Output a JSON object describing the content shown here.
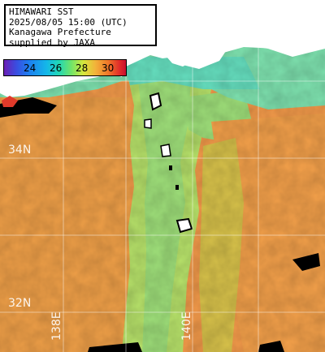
{
  "title_lines": [
    "HIMAWARI SST",
    "2025/08/05 15:00 (UTC)",
    "Kanagawa Prefecture",
    "supplied by JAXA"
  ],
  "color_scale": {
    "ticks": [
      "24",
      "26",
      "28",
      "30"
    ],
    "colors": [
      "#6a1fb5",
      "#3a4de0",
      "#14b8e8",
      "#6fe46a",
      "#f2b23a",
      "#e02a2a"
    ]
  },
  "grid_labels": {
    "lat": [
      "34N",
      "32N"
    ],
    "lon": [
      "138E",
      "140E"
    ]
  },
  "colors": {
    "warm_sea": "#f39a4a",
    "cool_sea": "#9fe07a",
    "land": "#ffffff",
    "no_data": "#000000"
  }
}
